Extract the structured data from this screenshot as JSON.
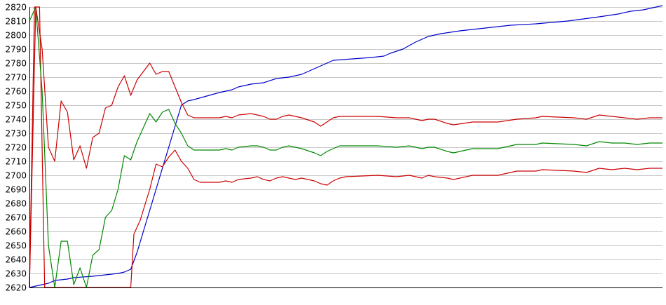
{
  "chart_data": {
    "type": "line",
    "title": "",
    "xlabel": "",
    "ylabel": "",
    "ylim": [
      2620,
      2820
    ],
    "yticks": [
      2620,
      2630,
      2640,
      2650,
      2660,
      2670,
      2680,
      2690,
      2700,
      2710,
      2720,
      2730,
      2740,
      2750,
      2760,
      2770,
      2780,
      2790,
      2800,
      2810,
      2820
    ],
    "xlim": [
      0,
      100
    ],
    "grid": true,
    "legend": "none",
    "series": [
      {
        "color": "#0000cc",
        "points": [
          [
            0,
            2620
          ],
          [
            3,
            2623
          ],
          [
            4,
            2625
          ],
          [
            6,
            2626
          ],
          [
            7,
            2627
          ],
          [
            10,
            2628
          ],
          [
            12,
            2629
          ],
          [
            14,
            2630
          ],
          [
            15,
            2631
          ],
          [
            16,
            2633
          ],
          [
            17,
            2645
          ],
          [
            18,
            2660
          ],
          [
            19,
            2675
          ],
          [
            20,
            2690
          ],
          [
            21,
            2705
          ],
          [
            22,
            2720
          ],
          [
            23,
            2735
          ],
          [
            24,
            2750
          ],
          [
            25,
            2753
          ],
          [
            26,
            2754
          ],
          [
            30,
            2759
          ],
          [
            32,
            2761
          ],
          [
            33,
            2763
          ],
          [
            35,
            2765
          ],
          [
            37,
            2766
          ],
          [
            39,
            2769
          ],
          [
            41,
            2770
          ],
          [
            43,
            2772
          ],
          [
            45,
            2776
          ],
          [
            47,
            2780
          ],
          [
            48,
            2782
          ],
          [
            51,
            2783
          ],
          [
            54,
            2784
          ],
          [
            56,
            2785
          ],
          [
            57,
            2787
          ],
          [
            59,
            2790
          ],
          [
            61,
            2795
          ],
          [
            63,
            2799
          ],
          [
            65,
            2801
          ],
          [
            68,
            2803
          ],
          [
            72,
            2805
          ],
          [
            76,
            2807
          ],
          [
            80,
            2808
          ],
          [
            85,
            2810
          ],
          [
            90,
            2813
          ],
          [
            93,
            2815
          ],
          [
            95,
            2817
          ],
          [
            97,
            2818
          ],
          [
            100,
            2821
          ]
        ]
      },
      {
        "color": "#cc0000",
        "points": [
          [
            0,
            2620
          ],
          [
            0.8,
            2820
          ],
          [
            1.6,
            2820
          ],
          [
            2.4,
            2620
          ],
          [
            4,
            2620
          ],
          [
            8,
            2620
          ],
          [
            12,
            2620
          ],
          [
            16,
            2620
          ],
          [
            16.5,
            2658
          ],
          [
            17.5,
            2668
          ],
          [
            19,
            2690
          ],
          [
            20,
            2708
          ],
          [
            21,
            2706
          ],
          [
            22,
            2713
          ],
          [
            23,
            2718
          ],
          [
            24,
            2710
          ],
          [
            25,
            2705
          ],
          [
            26,
            2697
          ],
          [
            27,
            2695
          ],
          [
            30,
            2695
          ],
          [
            31,
            2696
          ],
          [
            32,
            2695
          ],
          [
            33,
            2697
          ],
          [
            35,
            2698
          ],
          [
            36,
            2699
          ],
          [
            37,
            2697
          ],
          [
            38,
            2696
          ],
          [
            39,
            2698
          ],
          [
            40,
            2699
          ],
          [
            41,
            2698
          ],
          [
            42,
            2697
          ],
          [
            43,
            2698
          ],
          [
            45,
            2696
          ],
          [
            46,
            2694
          ],
          [
            47,
            2693
          ],
          [
            48,
            2696
          ],
          [
            49,
            2698
          ],
          [
            50,
            2699
          ],
          [
            55,
            2700
          ],
          [
            58,
            2699
          ],
          [
            60,
            2700
          ],
          [
            62,
            2698
          ],
          [
            63,
            2700
          ],
          [
            64,
            2699
          ],
          [
            66,
            2698
          ],
          [
            67,
            2697
          ],
          [
            70,
            2700
          ],
          [
            74,
            2700
          ],
          [
            77,
            2703
          ],
          [
            80,
            2703
          ],
          [
            81,
            2704
          ],
          [
            86,
            2703
          ],
          [
            88,
            2702
          ],
          [
            90,
            2705
          ],
          [
            92,
            2704
          ],
          [
            94,
            2705
          ],
          [
            96,
            2704
          ],
          [
            98,
            2705
          ],
          [
            100,
            2705
          ]
        ]
      },
      {
        "color": "#008800",
        "points": [
          [
            0,
            2810
          ],
          [
            1,
            2820
          ],
          [
            2,
            2760
          ],
          [
            3,
            2650
          ],
          [
            4,
            2620
          ],
          [
            5,
            2653
          ],
          [
            6,
            2653
          ],
          [
            7,
            2622
          ],
          [
            8,
            2634
          ],
          [
            9,
            2620
          ],
          [
            10,
            2643
          ],
          [
            11,
            2647
          ],
          [
            12,
            2670
          ],
          [
            13,
            2675
          ],
          [
            14,
            2690
          ],
          [
            15,
            2714
          ],
          [
            16,
            2711
          ],
          [
            17,
            2724
          ],
          [
            19,
            2744
          ],
          [
            20,
            2738
          ],
          [
            21,
            2745
          ],
          [
            22,
            2747
          ],
          [
            23,
            2737
          ],
          [
            24,
            2730
          ],
          [
            25,
            2721
          ],
          [
            26,
            2718
          ],
          [
            30,
            2718
          ],
          [
            31,
            2719
          ],
          [
            32,
            2718
          ],
          [
            33,
            2720
          ],
          [
            35,
            2721
          ],
          [
            36,
            2721
          ],
          [
            37,
            2720
          ],
          [
            38,
            2718
          ],
          [
            39,
            2718
          ],
          [
            40,
            2720
          ],
          [
            41,
            2721
          ],
          [
            42,
            2720
          ],
          [
            43,
            2719
          ],
          [
            45,
            2716
          ],
          [
            46,
            2714
          ],
          [
            47,
            2717
          ],
          [
            48,
            2719
          ],
          [
            49,
            2721
          ],
          [
            50,
            2721
          ],
          [
            55,
            2721
          ],
          [
            58,
            2720
          ],
          [
            60,
            2721
          ],
          [
            62,
            2719
          ],
          [
            63,
            2720
          ],
          [
            64,
            2720
          ],
          [
            66,
            2717
          ],
          [
            67,
            2716
          ],
          [
            70,
            2719
          ],
          [
            74,
            2719
          ],
          [
            77,
            2722
          ],
          [
            80,
            2722
          ],
          [
            81,
            2723
          ],
          [
            86,
            2722
          ],
          [
            88,
            2721
          ],
          [
            90,
            2724
          ],
          [
            92,
            2723
          ],
          [
            94,
            2723
          ],
          [
            96,
            2722
          ],
          [
            98,
            2723
          ],
          [
            100,
            2723
          ]
        ]
      },
      {
        "color": "#cc0000",
        "points": [
          [
            0,
            2620
          ],
          [
            1,
            2820
          ],
          [
            2,
            2790
          ],
          [
            3,
            2720
          ],
          [
            4,
            2710
          ],
          [
            5,
            2753
          ],
          [
            6,
            2745
          ],
          [
            7,
            2711
          ],
          [
            8,
            2721
          ],
          [
            9,
            2705
          ],
          [
            10,
            2727
          ],
          [
            11,
            2730
          ],
          [
            12,
            2748
          ],
          [
            13,
            2750
          ],
          [
            14,
            2763
          ],
          [
            15,
            2771
          ],
          [
            16,
            2757
          ],
          [
            17,
            2768
          ],
          [
            19,
            2780
          ],
          [
            20,
            2772
          ],
          [
            21,
            2774
          ],
          [
            22,
            2774
          ],
          [
            23,
            2763
          ],
          [
            24,
            2752
          ],
          [
            25,
            2743
          ],
          [
            26,
            2741
          ],
          [
            30,
            2741
          ],
          [
            31,
            2742
          ],
          [
            32,
            2741
          ],
          [
            33,
            2743
          ],
          [
            35,
            2744
          ],
          [
            36,
            2743
          ],
          [
            37,
            2742
          ],
          [
            38,
            2740
          ],
          [
            39,
            2740
          ],
          [
            40,
            2742
          ],
          [
            41,
            2743
          ],
          [
            42,
            2742
          ],
          [
            43,
            2741
          ],
          [
            45,
            2738
          ],
          [
            46,
            2735
          ],
          [
            47,
            2738
          ],
          [
            48,
            2741
          ],
          [
            49,
            2742
          ],
          [
            50,
            2742
          ],
          [
            55,
            2742
          ],
          [
            58,
            2741
          ],
          [
            60,
            2741
          ],
          [
            62,
            2739
          ],
          [
            63,
            2740
          ],
          [
            64,
            2740
          ],
          [
            66,
            2737
          ],
          [
            67,
            2736
          ],
          [
            70,
            2738
          ],
          [
            74,
            2738
          ],
          [
            77,
            2740
          ],
          [
            80,
            2741
          ],
          [
            81,
            2742
          ],
          [
            86,
            2741
          ],
          [
            88,
            2740
          ],
          [
            90,
            2743
          ],
          [
            92,
            2742
          ],
          [
            94,
            2741
          ],
          [
            96,
            2740
          ],
          [
            98,
            2741
          ],
          [
            100,
            2741
          ]
        ]
      }
    ]
  }
}
